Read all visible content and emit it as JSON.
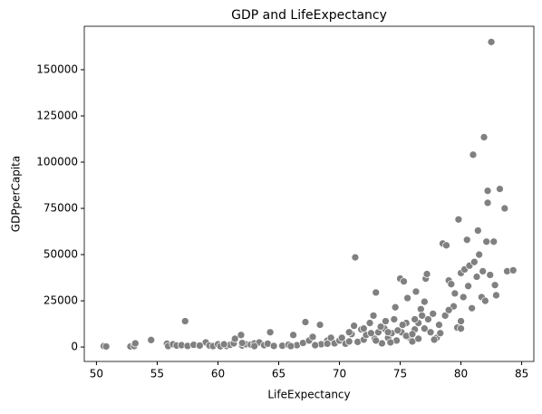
{
  "chart_data": {
    "type": "scatter",
    "title": "GDP and LifeExpectancy",
    "xlabel": "LifeExpectancy",
    "ylabel": "GDPperCapita",
    "color": "#808080",
    "x": [
      50.6,
      50.8,
      52.8,
      53.1,
      53.2,
      54.5,
      55.8,
      55.9,
      56.3,
      56.6,
      57.0,
      57.3,
      57.5,
      58.0,
      59.0,
      59.3,
      59.6,
      60.0,
      60.2,
      60.7,
      61.0,
      61.3,
      61.4,
      61.9,
      62.0,
      62.3,
      62.7,
      63.0,
      63.4,
      63.8,
      64.1,
      64.3,
      64.6,
      65.3,
      65.8,
      66.2,
      66.5,
      67.0,
      67.2,
      67.5,
      67.8,
      68.4,
      68.5,
      69.0,
      69.3,
      69.6,
      70.0,
      70.2,
      70.5,
      70.8,
      71.0,
      71.2,
      71.3,
      71.5,
      71.8,
      72.0,
      72.2,
      72.5,
      72.8,
      72.9,
      73.0,
      73.2,
      73.5,
      73.7,
      73.8,
      74.0,
      74.3,
      74.5,
      74.6,
      74.7,
      75.0,
      75.1,
      75.3,
      75.5,
      75.6,
      75.8,
      76.0,
      76.2,
      76.3,
      76.5,
      76.7,
      76.8,
      77.0,
      77.1,
      77.2,
      77.3,
      77.5,
      77.7,
      78.0,
      78.2,
      78.5,
      78.7,
      78.8,
      79.0,
      79.2,
      79.4,
      79.5,
      79.7,
      79.8,
      80.0,
      80.2,
      80.3,
      80.5,
      80.6,
      80.7,
      80.9,
      81.0,
      81.1,
      81.3,
      81.4,
      81.5,
      81.7,
      81.8,
      81.9,
      82.0,
      82.1,
      82.2,
      82.2,
      82.4,
      82.5,
      82.7,
      82.8,
      82.9,
      83.2,
      83.6,
      83.8,
      84.3,
      80.0,
      80.0,
      79.0,
      76.2,
      75.2,
      74.0,
      73.0,
      72.0,
      70.8,
      69.0,
      68.0,
      66.0,
      63.0,
      62.0,
      60.5,
      58.5,
      75.5,
      76.0,
      76.5,
      77.0,
      77.8,
      78.3,
      74.8,
      74.2,
      73.4,
      72.6
    ],
    "values": [
      500,
      300,
      300,
      500,
      2000,
      3800,
      1800,
      500,
      1500,
      800,
      1000,
      14000,
      600,
      1200,
      2500,
      800,
      500,
      1500,
      400,
      600,
      1200,
      2000,
      4500,
      6500,
      800,
      1500,
      1300,
      2000,
      2500,
      1000,
      1800,
      8000,
      600,
      700,
      1200,
      6500,
      1000,
      2200,
      13500,
      3500,
      5500,
      12000,
      1500,
      3500,
      5000,
      2000,
      3500,
      5000,
      1800,
      3000,
      7000,
      11500,
      48500,
      2800,
      9500,
      4000,
      6500,
      13000,
      17000,
      4500,
      29500,
      8000,
      2000,
      10000,
      14000,
      5000,
      7500,
      15000,
      21500,
      3500,
      37000,
      8000,
      35500,
      13000,
      26500,
      5000,
      3000,
      9500,
      30000,
      13000,
      20500,
      17000,
      24500,
      37000,
      39500,
      15000,
      8000,
      18000,
      5000,
      12000,
      56000,
      17000,
      55000,
      36000,
      34000,
      22000,
      29000,
      10500,
      69000,
      40000,
      27000,
      42000,
      58000,
      33000,
      44000,
      21000,
      104000,
      46000,
      38000,
      63000,
      50000,
      27000,
      41000,
      113500,
      25000,
      57000,
      84500,
      78000,
      39000,
      165000,
      57000,
      33500,
      28000,
      85500,
      75000,
      41000,
      41500,
      14000,
      10000,
      20000,
      15000,
      12000,
      8000,
      3500,
      10000,
      8000,
      1800,
      1000,
      500,
      500,
      2200,
      1500,
      800,
      6000,
      7000,
      4500,
      10000,
      4000,
      7500,
      9000,
      2500,
      11000,
      7500
    ],
    "xlim": [
      49,
      86
    ],
    "ylim": [
      -7800,
      173500
    ],
    "xticks": [
      50,
      55,
      60,
      65,
      70,
      75,
      80,
      85
    ],
    "yticks": [
      0,
      25000,
      50000,
      75000,
      100000,
      125000,
      150000
    ]
  }
}
